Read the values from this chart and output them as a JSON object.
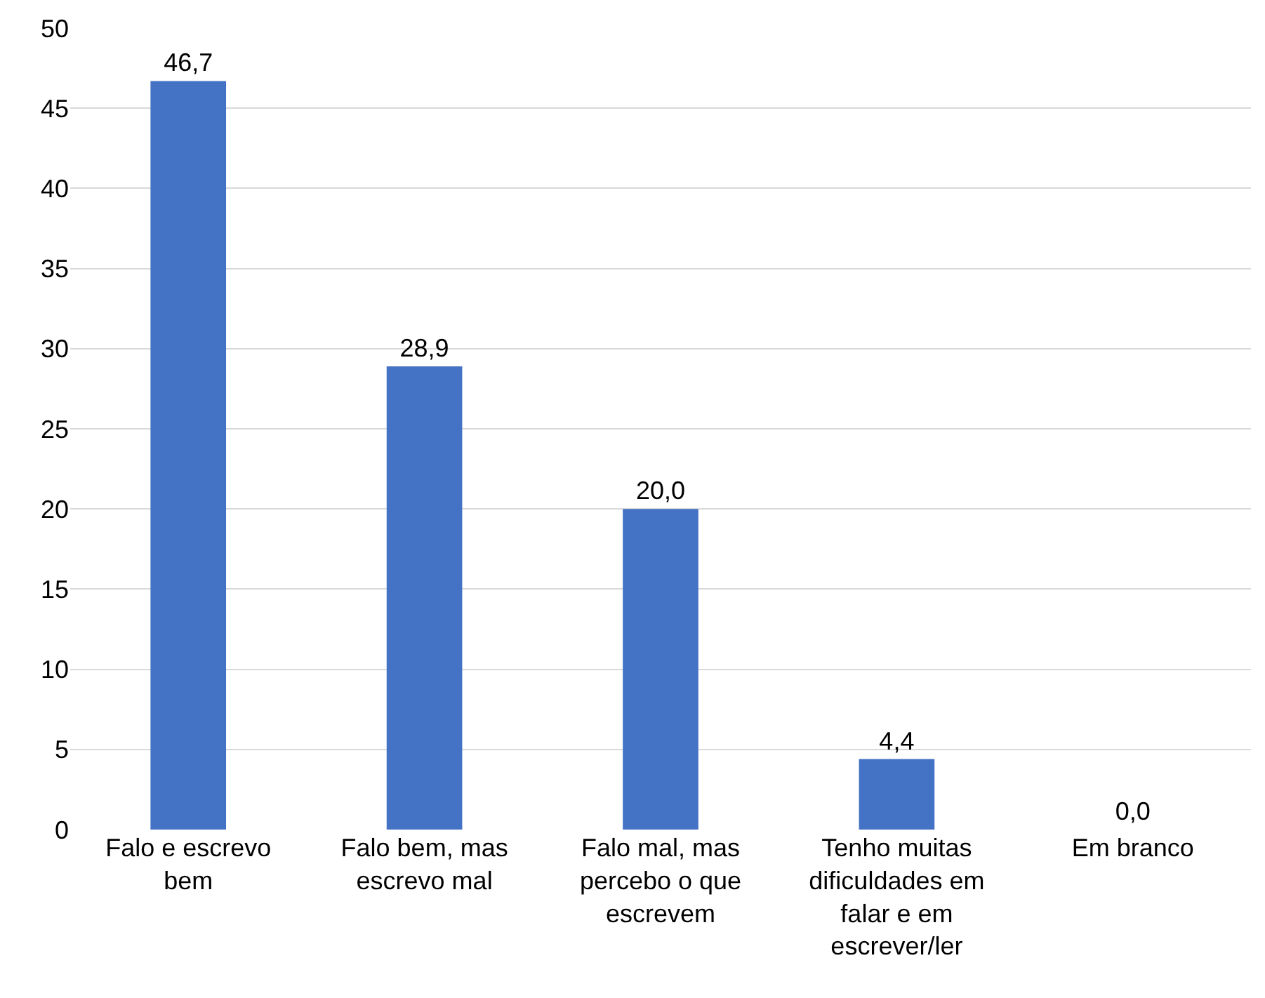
{
  "chart_data": {
    "type": "bar",
    "categories": [
      "Falo e escrevo bem",
      "Falo bem, mas escrevo mal",
      "Falo mal, mas percebo o que escrevem",
      "Tenho muitas dificuldades em falar e em escrever/ler",
      "Em branco"
    ],
    "values": [
      46.7,
      28.9,
      20.0,
      4.4,
      0.0
    ],
    "value_labels": [
      "46,7",
      "28,9",
      "20,0",
      "4,4",
      "0,0"
    ],
    "color": "#4472c4",
    "ylim": [
      0,
      50
    ],
    "yticks": [
      0,
      5,
      10,
      15,
      20,
      25,
      30,
      35,
      40,
      45,
      50
    ],
    "grid": "y"
  }
}
